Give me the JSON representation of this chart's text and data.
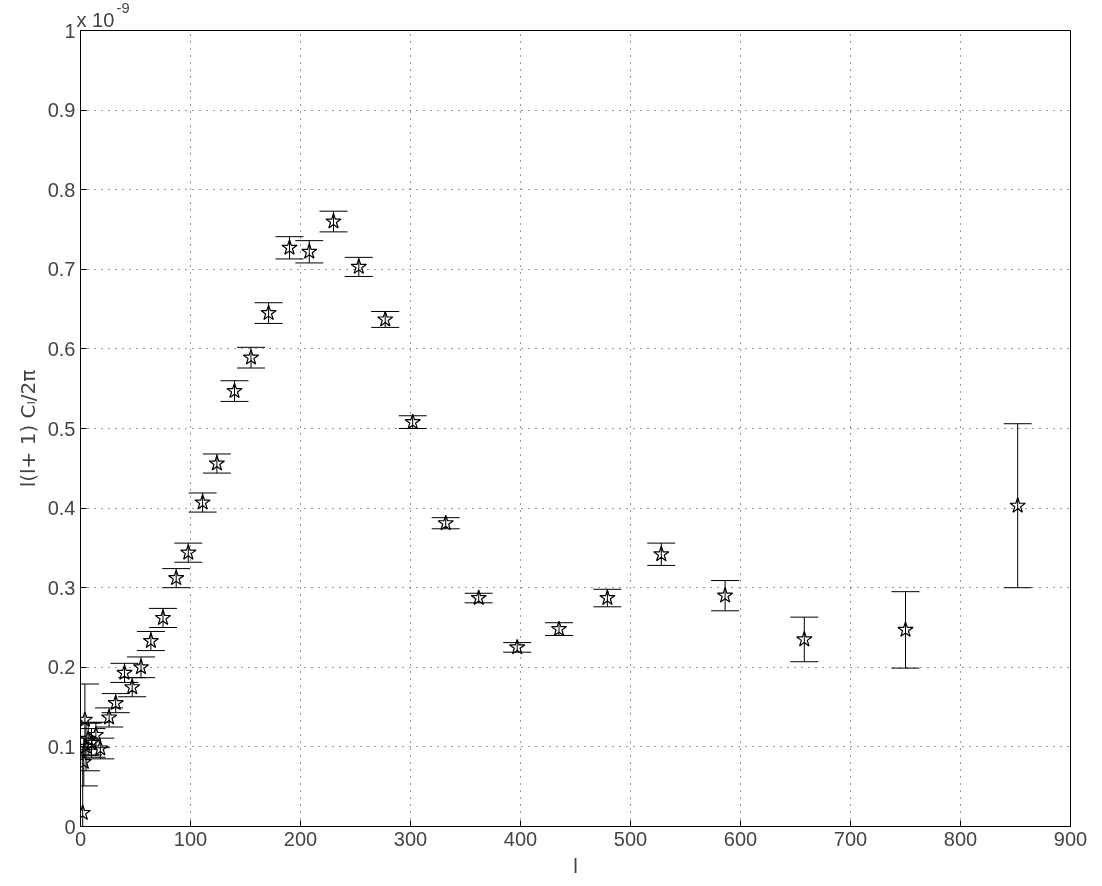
{
  "chart_data": {
    "type": "scatter",
    "xlabel": "l",
    "ylabel": "l(l+ 1) Cₗ/2π",
    "annotations": [
      "x 10$^{-9}$"
    ],
    "x": [
      2,
      3,
      4,
      5,
      7,
      10,
      14,
      18,
      26,
      32,
      40,
      47,
      55,
      64,
      75,
      87,
      98,
      111,
      124,
      140,
      155,
      171,
      190,
      208,
      230,
      253,
      277,
      302,
      332,
      362,
      397,
      435,
      479,
      528,
      586,
      658,
      750,
      852
    ],
    "series": [
      {
        "color": "#000000",
        "values": [
          0.017,
          0.081,
          0.134,
          0.1,
          0.11,
          0.105,
          0.115,
          0.098,
          0.137,
          0.155,
          0.193,
          0.175,
          0.2,
          0.233,
          0.262,
          0.312,
          0.344,
          0.407,
          0.456,
          0.547,
          0.589,
          0.645,
          0.727,
          0.722,
          0.76,
          0.703,
          0.637,
          0.508,
          0.381,
          0.287,
          0.225,
          0.248,
          0.287,
          0.342,
          0.29,
          0.235,
          0.247,
          0.403
        ],
        "errors": [
          0.08,
          0.03,
          0.045,
          0.03,
          0.02,
          0.018,
          0.016,
          0.013,
          0.012,
          0.012,
          0.012,
          0.012,
          0.013,
          0.012,
          0.012,
          0.012,
          0.012,
          0.012,
          0.012,
          0.013,
          0.013,
          0.013,
          0.014,
          0.014,
          0.013,
          0.012,
          0.01,
          0.008,
          0.007,
          0.006,
          0.006,
          0.008,
          0.011,
          0.014,
          0.019,
          0.028,
          0.048,
          0.103
        ]
      }
    ],
    "marker": "star",
    "xlim": [
      0,
      900
    ],
    "xticks": [
      0,
      100,
      200,
      300,
      400,
      500,
      600,
      700,
      800,
      900
    ],
    "ylim": [
      0,
      1
    ],
    "yticks": [
      0,
      0.1,
      0.2,
      0.3,
      0.4,
      0.5,
      0.6,
      0.7,
      0.8,
      0.9,
      1
    ],
    "grid": true
  }
}
